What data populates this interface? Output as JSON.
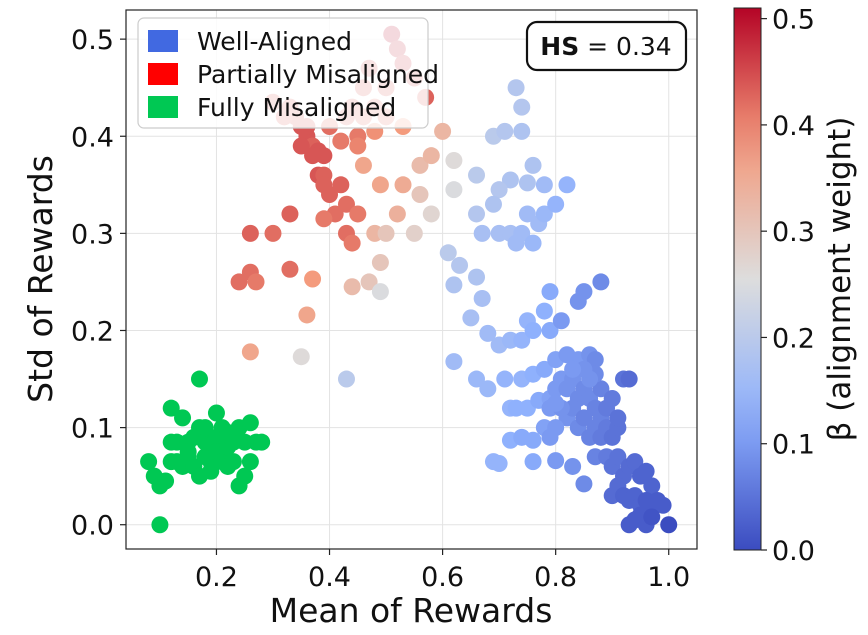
{
  "chart_data": {
    "type": "scatter",
    "xlabel": "Mean of Rewards",
    "ylabel": "Std of Rewards",
    "xlim": [
      0.04,
      1.05
    ],
    "ylim": [
      -0.025,
      0.53
    ],
    "xticks": [
      "0.2",
      "0.4",
      "0.6",
      "0.8",
      "1.0"
    ],
    "xtick_values": [
      0.2,
      0.4,
      0.6,
      0.8,
      1.0
    ],
    "yticks": [
      "0.0",
      "0.1",
      "0.2",
      "0.3",
      "0.4",
      "0.5"
    ],
    "ytick_values": [
      0.0,
      0.1,
      0.2,
      0.3,
      0.4,
      0.5
    ],
    "grid": true,
    "legend": {
      "position": "top-left",
      "entries": [
        {
          "label": "Well-Aligned",
          "color": "#4169E1"
        },
        {
          "label": "Partially Misaligned",
          "color": "#FF0000"
        },
        {
          "label": "Fully Misaligned",
          "color": "#00C853"
        }
      ]
    },
    "annotation": {
      "bold": "HS",
      "rest": " = 0.34",
      "position": "top-right"
    },
    "colorbar": {
      "label": "β (alignment weight)",
      "range": [
        0.0,
        0.51
      ],
      "ticks": [
        "0.0",
        "0.1",
        "0.2",
        "0.3",
        "0.4",
        "0.5"
      ],
      "tick_values": [
        0.0,
        0.1,
        0.2,
        0.3,
        0.4,
        0.5
      ],
      "colormap": "coolwarm"
    },
    "fully_misaligned_color": "#00C853",
    "fully_misaligned": [
      [
        0.08,
        0.065
      ],
      [
        0.09,
        0.05
      ],
      [
        0.1,
        0.04
      ],
      [
        0.1,
        0.0
      ],
      [
        0.11,
        0.045
      ],
      [
        0.12,
        0.065
      ],
      [
        0.12,
        0.12
      ],
      [
        0.13,
        0.065
      ],
      [
        0.13,
        0.085
      ],
      [
        0.14,
        0.06
      ],
      [
        0.14,
        0.11
      ],
      [
        0.15,
        0.085
      ],
      [
        0.15,
        0.07
      ],
      [
        0.16,
        0.09
      ],
      [
        0.16,
        0.06
      ],
      [
        0.17,
        0.1
      ],
      [
        0.17,
        0.15
      ],
      [
        0.17,
        0.05
      ],
      [
        0.18,
        0.07
      ],
      [
        0.18,
        0.085
      ],
      [
        0.19,
        0.065
      ],
      [
        0.19,
        0.055
      ],
      [
        0.2,
        0.115
      ],
      [
        0.2,
        0.09
      ],
      [
        0.2,
        0.075
      ],
      [
        0.21,
        0.065
      ],
      [
        0.21,
        0.1
      ],
      [
        0.22,
        0.095
      ],
      [
        0.22,
        0.06
      ],
      [
        0.22,
        0.08
      ],
      [
        0.23,
        0.065
      ],
      [
        0.23,
        0.085
      ],
      [
        0.24,
        0.04
      ],
      [
        0.24,
        0.1
      ],
      [
        0.25,
        0.05
      ],
      [
        0.25,
        0.085
      ],
      [
        0.26,
        0.065
      ],
      [
        0.26,
        0.105
      ],
      [
        0.27,
        0.085
      ],
      [
        0.28,
        0.085
      ],
      [
        0.15,
        0.075
      ],
      [
        0.18,
        0.1
      ],
      [
        0.12,
        0.085
      ]
    ],
    "points": [
      [
        0.51,
        0.505,
        0.51
      ],
      [
        0.52,
        0.49,
        0.49
      ],
      [
        0.53,
        0.475,
        0.47
      ],
      [
        0.55,
        0.46,
        0.45
      ],
      [
        0.57,
        0.44,
        0.43
      ],
      [
        0.47,
        0.47,
        0.45
      ],
      [
        0.46,
        0.45,
        0.44
      ],
      [
        0.5,
        0.45,
        0.44
      ],
      [
        0.48,
        0.43,
        0.42
      ],
      [
        0.44,
        0.43,
        0.43
      ],
      [
        0.43,
        0.42,
        0.43
      ],
      [
        0.46,
        0.42,
        0.42
      ],
      [
        0.5,
        0.42,
        0.42
      ],
      [
        0.4,
        0.41,
        0.42
      ],
      [
        0.45,
        0.4,
        0.41
      ],
      [
        0.53,
        0.41,
        0.38
      ],
      [
        0.48,
        0.405,
        0.39
      ],
      [
        0.45,
        0.39,
        0.4
      ],
      [
        0.42,
        0.395,
        0.41
      ],
      [
        0.33,
        0.43,
        0.44
      ],
      [
        0.34,
        0.42,
        0.44
      ],
      [
        0.35,
        0.41,
        0.44
      ],
      [
        0.36,
        0.4,
        0.44
      ],
      [
        0.37,
        0.39,
        0.43
      ],
      [
        0.38,
        0.385,
        0.44
      ],
      [
        0.39,
        0.38,
        0.44
      ],
      [
        0.37,
        0.38,
        0.44
      ],
      [
        0.38,
        0.36,
        0.44
      ],
      [
        0.36,
        0.41,
        0.44
      ],
      [
        0.39,
        0.36,
        0.43
      ],
      [
        0.3,
        0.435,
        0.44
      ],
      [
        0.32,
        0.42,
        0.43
      ],
      [
        0.35,
        0.39,
        0.44
      ],
      [
        0.39,
        0.35,
        0.43
      ],
      [
        0.4,
        0.34,
        0.43
      ],
      [
        0.42,
        0.35,
        0.43
      ],
      [
        0.43,
        0.33,
        0.42
      ],
      [
        0.45,
        0.32,
        0.41
      ],
      [
        0.41,
        0.32,
        0.42
      ],
      [
        0.43,
        0.3,
        0.42
      ],
      [
        0.44,
        0.29,
        0.41
      ],
      [
        0.39,
        0.315,
        0.41
      ],
      [
        0.46,
        0.37,
        0.36
      ],
      [
        0.49,
        0.35,
        0.36
      ],
      [
        0.53,
        0.35,
        0.35
      ],
      [
        0.52,
        0.32,
        0.34
      ],
      [
        0.48,
        0.3,
        0.33
      ],
      [
        0.5,
        0.3,
        0.3
      ],
      [
        0.55,
        0.3,
        0.28
      ],
      [
        0.49,
        0.27,
        0.3
      ],
      [
        0.47,
        0.25,
        0.3
      ],
      [
        0.49,
        0.24,
        0.25
      ],
      [
        0.44,
        0.245,
        0.32
      ],
      [
        0.56,
        0.37,
        0.32
      ],
      [
        0.58,
        0.38,
        0.33
      ],
      [
        0.56,
        0.34,
        0.3
      ],
      [
        0.58,
        0.32,
        0.27
      ],
      [
        0.6,
        0.405,
        0.33
      ],
      [
        0.62,
        0.375,
        0.26
      ],
      [
        0.62,
        0.345,
        0.25
      ],
      [
        0.33,
        0.32,
        0.43
      ],
      [
        0.3,
        0.3,
        0.42
      ],
      [
        0.26,
        0.3,
        0.43
      ],
      [
        0.26,
        0.26,
        0.42
      ],
      [
        0.27,
        0.25,
        0.41
      ],
      [
        0.24,
        0.25,
        0.42
      ],
      [
        0.33,
        0.263,
        0.42
      ],
      [
        0.37,
        0.253,
        0.38
      ],
      [
        0.36,
        0.216,
        0.36
      ],
      [
        0.26,
        0.178,
        0.36
      ],
      [
        0.35,
        0.173,
        0.26
      ],
      [
        0.43,
        0.15,
        0.2
      ],
      [
        0.73,
        0.45,
        0.19
      ],
      [
        0.74,
        0.43,
        0.19
      ],
      [
        0.69,
        0.4,
        0.2
      ],
      [
        0.71,
        0.405,
        0.19
      ],
      [
        0.74,
        0.405,
        0.18
      ],
      [
        0.76,
        0.37,
        0.18
      ],
      [
        0.66,
        0.36,
        0.2
      ],
      [
        0.72,
        0.355,
        0.18
      ],
      [
        0.75,
        0.352,
        0.18
      ],
      [
        0.78,
        0.35,
        0.16
      ],
      [
        0.82,
        0.35,
        0.14
      ],
      [
        0.7,
        0.345,
        0.19
      ],
      [
        0.66,
        0.32,
        0.19
      ],
      [
        0.69,
        0.33,
        0.18
      ],
      [
        0.67,
        0.3,
        0.17
      ],
      [
        0.7,
        0.3,
        0.17
      ],
      [
        0.72,
        0.3,
        0.17
      ],
      [
        0.74,
        0.3,
        0.16
      ],
      [
        0.75,
        0.32,
        0.16
      ],
      [
        0.73,
        0.29,
        0.16
      ],
      [
        0.76,
        0.29,
        0.15
      ],
      [
        0.77,
        0.31,
        0.16
      ],
      [
        0.78,
        0.32,
        0.15
      ],
      [
        0.8,
        0.33,
        0.14
      ],
      [
        0.61,
        0.28,
        0.2
      ],
      [
        0.63,
        0.267,
        0.19
      ],
      [
        0.66,
        0.255,
        0.18
      ],
      [
        0.62,
        0.247,
        0.18
      ],
      [
        0.67,
        0.233,
        0.17
      ],
      [
        0.65,
        0.213,
        0.17
      ],
      [
        0.68,
        0.197,
        0.16
      ],
      [
        0.7,
        0.185,
        0.16
      ],
      [
        0.72,
        0.19,
        0.15
      ],
      [
        0.74,
        0.19,
        0.14
      ],
      [
        0.75,
        0.21,
        0.14
      ],
      [
        0.76,
        0.2,
        0.13
      ],
      [
        0.78,
        0.22,
        0.13
      ],
      [
        0.79,
        0.24,
        0.12
      ],
      [
        0.79,
        0.2,
        0.12
      ],
      [
        0.81,
        0.21,
        0.1
      ],
      [
        0.84,
        0.23,
        0.09
      ],
      [
        0.85,
        0.24,
        0.09
      ],
      [
        0.88,
        0.25,
        0.08
      ],
      [
        0.62,
        0.168,
        0.16
      ],
      [
        0.66,
        0.15,
        0.15
      ],
      [
        0.68,
        0.14,
        0.15
      ],
      [
        0.71,
        0.15,
        0.14
      ],
      [
        0.74,
        0.15,
        0.14
      ],
      [
        0.76,
        0.155,
        0.13
      ],
      [
        0.78,
        0.16,
        0.12
      ],
      [
        0.8,
        0.17,
        0.11
      ],
      [
        0.82,
        0.175,
        0.1
      ],
      [
        0.84,
        0.17,
        0.1
      ],
      [
        0.86,
        0.175,
        0.09
      ],
      [
        0.87,
        0.17,
        0.08
      ],
      [
        0.72,
        0.12,
        0.14
      ],
      [
        0.73,
        0.12,
        0.13
      ],
      [
        0.75,
        0.12,
        0.13
      ],
      [
        0.77,
        0.128,
        0.12
      ],
      [
        0.79,
        0.13,
        0.11
      ],
      [
        0.8,
        0.14,
        0.1
      ],
      [
        0.81,
        0.15,
        0.1
      ],
      [
        0.82,
        0.14,
        0.09
      ],
      [
        0.83,
        0.15,
        0.09
      ],
      [
        0.84,
        0.13,
        0.08
      ],
      [
        0.85,
        0.14,
        0.08
      ],
      [
        0.86,
        0.13,
        0.08
      ],
      [
        0.87,
        0.12,
        0.07
      ],
      [
        0.88,
        0.14,
        0.07
      ],
      [
        0.88,
        0.11,
        0.07
      ],
      [
        0.89,
        0.12,
        0.06
      ],
      [
        0.9,
        0.13,
        0.06
      ],
      [
        0.82,
        0.11,
        0.09
      ],
      [
        0.83,
        0.12,
        0.08
      ],
      [
        0.84,
        0.1,
        0.08
      ],
      [
        0.85,
        0.11,
        0.07
      ],
      [
        0.86,
        0.09,
        0.07
      ],
      [
        0.87,
        0.1,
        0.07
      ],
      [
        0.88,
        0.09,
        0.06
      ],
      [
        0.89,
        0.1,
        0.06
      ],
      [
        0.9,
        0.09,
        0.05
      ],
      [
        0.91,
        0.1,
        0.05
      ],
      [
        0.91,
        0.11,
        0.05
      ],
      [
        0.92,
        0.15,
        0.05
      ],
      [
        0.93,
        0.15,
        0.04
      ],
      [
        0.79,
        0.12,
        0.1
      ],
      [
        0.78,
        0.1,
        0.11
      ],
      [
        0.8,
        0.1,
        0.1
      ],
      [
        0.81,
        0.12,
        0.09
      ],
      [
        0.72,
        0.087,
        0.13
      ],
      [
        0.74,
        0.09,
        0.12
      ],
      [
        0.76,
        0.087,
        0.12
      ],
      [
        0.79,
        0.09,
        0.1
      ],
      [
        0.69,
        0.065,
        0.14
      ],
      [
        0.7,
        0.063,
        0.14
      ],
      [
        0.76,
        0.065,
        0.12
      ],
      [
        0.8,
        0.066,
        0.1
      ],
      [
        0.83,
        0.06,
        0.09
      ],
      [
        0.85,
        0.042,
        0.08
      ],
      [
        0.87,
        0.07,
        0.07
      ],
      [
        0.89,
        0.07,
        0.06
      ],
      [
        0.9,
        0.06,
        0.05
      ],
      [
        0.91,
        0.07,
        0.05
      ],
      [
        0.92,
        0.05,
        0.04
      ],
      [
        0.93,
        0.06,
        0.04
      ],
      [
        0.94,
        0.065,
        0.04
      ],
      [
        0.95,
        0.05,
        0.03
      ],
      [
        0.96,
        0.055,
        0.03
      ],
      [
        0.97,
        0.04,
        0.03
      ],
      [
        0.9,
        0.03,
        0.04
      ],
      [
        0.91,
        0.04,
        0.04
      ],
      [
        0.92,
        0.03,
        0.03
      ],
      [
        0.93,
        0.025,
        0.03
      ],
      [
        0.94,
        0.03,
        0.03
      ],
      [
        0.95,
        0.02,
        0.03
      ],
      [
        0.96,
        0.025,
        0.02
      ],
      [
        0.97,
        0.018,
        0.02
      ],
      [
        0.98,
        0.025,
        0.02
      ],
      [
        0.99,
        0.02,
        0.02
      ],
      [
        0.93,
        0.0,
        0.02
      ],
      [
        0.94,
        0.005,
        0.02
      ],
      [
        0.95,
        0.01,
        0.02
      ],
      [
        0.96,
        0.0,
        0.02
      ],
      [
        0.97,
        0.008,
        0.01
      ],
      [
        1.0,
        0.0,
        0.0
      ],
      [
        0.87,
        0.155,
        0.08
      ],
      [
        0.86,
        0.15,
        0.09
      ],
      [
        0.85,
        0.16,
        0.09
      ],
      [
        0.83,
        0.16,
        0.1
      ],
      [
        0.8,
        0.125,
        0.1
      ]
    ]
  }
}
